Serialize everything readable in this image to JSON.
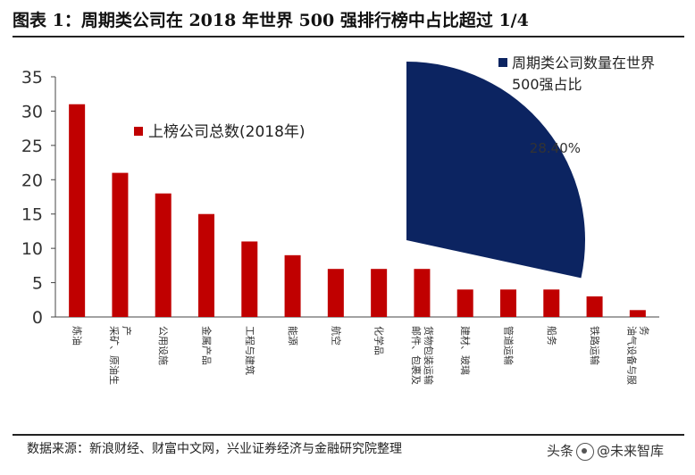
{
  "figure_title": "图表 1：周期类公司在 2018 年世界 500 强排行榜中占比超过 1/4",
  "source_note": "数据来源：新浪财经、财富中文网，兴业证券经济与金融研究院整理",
  "watermark": {
    "prefix": "头条",
    "name": "@未来智库"
  },
  "colors": {
    "bar": "#c00000",
    "pie": "#0c2461",
    "axis": "#444444"
  },
  "chart_data": {
    "type": "bar",
    "title": "",
    "xlabel": "",
    "ylabel": "",
    "ylim": [
      0,
      35
    ],
    "yticks": [
      0,
      5,
      10,
      15,
      20,
      25,
      30,
      35
    ],
    "categories": [
      "炼油",
      "采矿、原油生产",
      "公用设施",
      "金属产品",
      "工程与建筑",
      "能源",
      "航空",
      "化学品",
      "邮件、包裹及货物包装运输",
      "建材、玻璃",
      "管道运输",
      "船务",
      "铁路运输",
      "油气设备与服务"
    ],
    "series": [
      {
        "name": "上榜公司总数(2018年)",
        "values": [
          31,
          21,
          18,
          15,
          11,
          9,
          7,
          7,
          7,
          4,
          4,
          4,
          3,
          1
        ]
      }
    ],
    "inset_pie": {
      "legend": "周期类公司数量在世界500强占比",
      "value_percent": 28.4,
      "label": "28.40%"
    }
  }
}
